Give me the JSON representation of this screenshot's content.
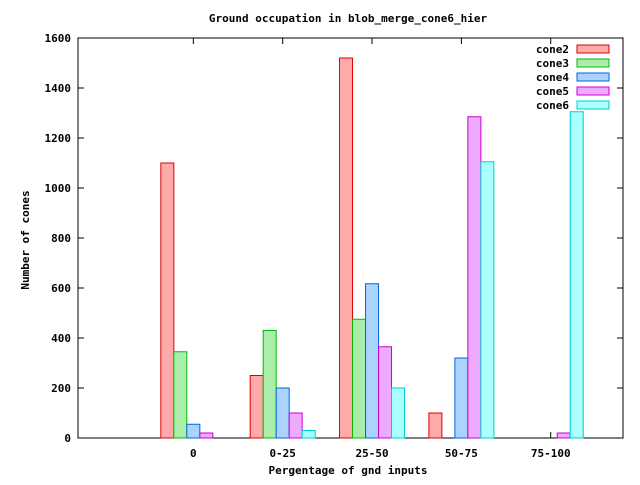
{
  "chart_data": {
    "type": "bar",
    "title": "Ground occupation in blob_merge_cone6_hier",
    "xlabel": "Pergentage of gnd inputs",
    "ylabel": "Number of cones",
    "categories": [
      "0",
      "0-25",
      "25-50",
      "50-75",
      "75-100"
    ],
    "ylim": [
      0,
      1600
    ],
    "yticks": [
      0,
      200,
      400,
      600,
      800,
      1000,
      1200,
      1400,
      1600
    ],
    "grid": false,
    "legend_position": "top-right",
    "series": [
      {
        "name": "cone2",
        "fill": "#ffaaaa",
        "stroke": "#dd0000",
        "values": [
          1100,
          250,
          1520,
          100,
          0
        ]
      },
      {
        "name": "cone3",
        "fill": "#aaeeaa",
        "stroke": "#00bb00",
        "values": [
          345,
          430,
          475,
          0,
          0
        ]
      },
      {
        "name": "cone4",
        "fill": "#aad4ff",
        "stroke": "#0066dd",
        "values": [
          55,
          200,
          617,
          320,
          0
        ]
      },
      {
        "name": "cone5",
        "fill": "#eeaaff",
        "stroke": "#cc00cc",
        "values": [
          20,
          100,
          365,
          1285,
          20
        ]
      },
      {
        "name": "cone6",
        "fill": "#aaffff",
        "stroke": "#00cccc",
        "values": [
          0,
          30,
          200,
          1105,
          1305
        ]
      }
    ]
  }
}
